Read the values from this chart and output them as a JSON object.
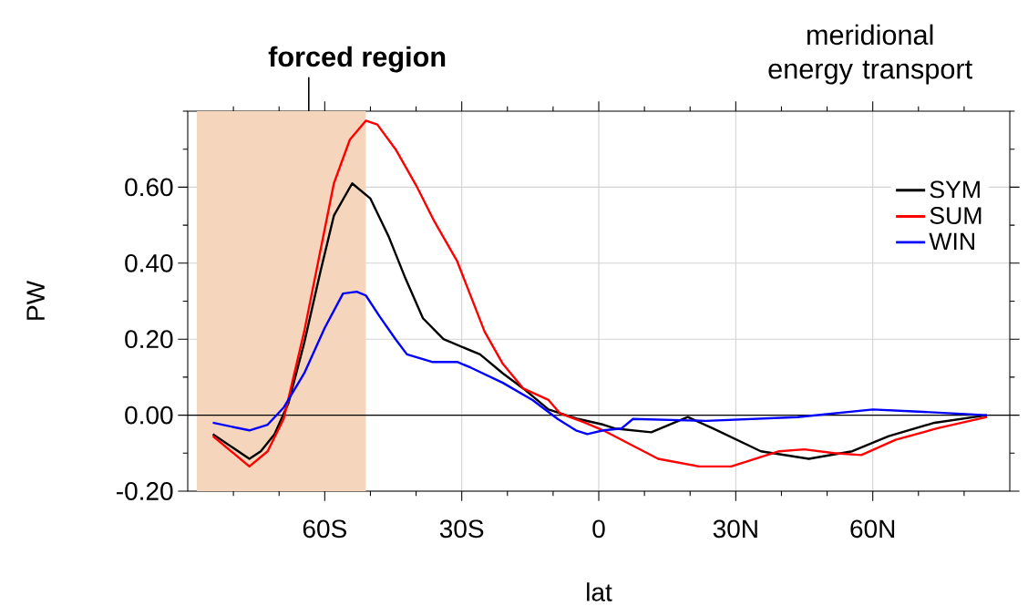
{
  "chart_data": {
    "type": "line",
    "title": "meridional energy transport",
    "xlabel": "lat",
    "ylabel": "PW",
    "xlim": [
      -90,
      90
    ],
    "ylim": [
      -0.2,
      0.8
    ],
    "xticks": [
      {
        "value": -80,
        "label": null
      },
      {
        "value": -70,
        "label": null
      },
      {
        "value": -60,
        "label": "60S"
      },
      {
        "value": -50,
        "label": null
      },
      {
        "value": -40,
        "label": null
      },
      {
        "value": -30,
        "label": "30S"
      },
      {
        "value": -20,
        "label": null
      },
      {
        "value": -10,
        "label": null
      },
      {
        "value": 0,
        "label": "0"
      },
      {
        "value": 10,
        "label": null
      },
      {
        "value": 20,
        "label": null
      },
      {
        "value": 30,
        "label": "30N"
      },
      {
        "value": 40,
        "label": null
      },
      {
        "value": 50,
        "label": null
      },
      {
        "value": 60,
        "label": "60N"
      },
      {
        "value": 70,
        "label": null
      },
      {
        "value": 80,
        "label": null
      }
    ],
    "yticks": [
      {
        "value": -0.2,
        "label": "-0.20"
      },
      {
        "value": -0.1,
        "label": null
      },
      {
        "value": 0,
        "label": "0.00"
      },
      {
        "value": 0.1,
        "label": null
      },
      {
        "value": 0.2,
        "label": "0.20"
      },
      {
        "value": 0.3,
        "label": null
      },
      {
        "value": 0.4,
        "label": "0.40"
      },
      {
        "value": 0.5,
        "label": null
      },
      {
        "value": 0.6,
        "label": "0.60"
      },
      {
        "value": 0.7,
        "label": null
      },
      {
        "value": 0.8,
        "label": null
      }
    ],
    "grid": true,
    "legend": "top right",
    "bands": [
      {
        "axis": "x",
        "from": -88,
        "to": -51,
        "label": "forced region",
        "color": "#f5d6bd"
      }
    ],
    "ref_lines": [
      {
        "axis": "y",
        "value": 0,
        "color": "#000000"
      }
    ],
    "series": [
      {
        "name": "SYM",
        "color": "#000000",
        "x": [
          -84.5,
          -76.5,
          -74,
          -71,
          -68,
          -64.5,
          -61,
          -58,
          -54,
          -50,
          -46,
          -42.5,
          -38.5,
          -34,
          -26,
          -21,
          -16.5,
          -11,
          -4.5,
          1,
          3.5,
          11.5,
          19.5,
          25,
          35.5,
          46,
          55.5,
          63.5,
          73.5,
          85
        ],
        "values": [
          -0.05,
          -0.115,
          -0.095,
          -0.05,
          0.03,
          0.19,
          0.375,
          0.525,
          0.61,
          0.57,
          0.47,
          0.365,
          0.255,
          0.2,
          0.16,
          0.11,
          0.07,
          0.015,
          -0.01,
          -0.025,
          -0.035,
          -0.045,
          -0.005,
          -0.035,
          -0.095,
          -0.115,
          -0.095,
          -0.055,
          -0.02,
          0
        ]
      },
      {
        "name": "SUM",
        "color": "#ff0000",
        "x": [
          -84.5,
          -76.5,
          -72.5,
          -69,
          -64.5,
          -61,
          -58,
          -54.5,
          -51,
          -48.5,
          -44.5,
          -40,
          -36,
          -31,
          -25,
          -21,
          -16.5,
          -11,
          -8.5,
          -3,
          1,
          13,
          22,
          29,
          39.5,
          45,
          51.5,
          57.5,
          65,
          74,
          85
        ],
        "values": [
          -0.055,
          -0.135,
          -0.095,
          -0.01,
          0.22,
          0.43,
          0.61,
          0.725,
          0.775,
          0.765,
          0.7,
          0.605,
          0.51,
          0.405,
          0.22,
          0.135,
          0.07,
          0.04,
          0.005,
          -0.02,
          -0.04,
          -0.115,
          -0.135,
          -0.135,
          -0.095,
          -0.09,
          -0.1,
          -0.105,
          -0.065,
          -0.035,
          -0.005
        ]
      },
      {
        "name": "WIN",
        "color": "#0000ff",
        "x": [
          -84.5,
          -76.5,
          -72.5,
          -69,
          -64.5,
          -60,
          -56,
          -53,
          -51,
          -48,
          -44.5,
          -42,
          -36.5,
          -31,
          -28,
          -21,
          -14.5,
          -9,
          -5,
          -2.5,
          1,
          5,
          7.5,
          23.5,
          43.5,
          60,
          69,
          85
        ],
        "values": [
          -0.02,
          -0.04,
          -0.025,
          0.02,
          0.11,
          0.23,
          0.32,
          0.325,
          0.315,
          0.26,
          0.2,
          0.16,
          0.14,
          0.14,
          0.125,
          0.085,
          0.04,
          -0.01,
          -0.04,
          -0.05,
          -0.04,
          -0.035,
          -0.01,
          -0.015,
          -0.005,
          0.015,
          0.01,
          0
        ]
      }
    ]
  }
}
